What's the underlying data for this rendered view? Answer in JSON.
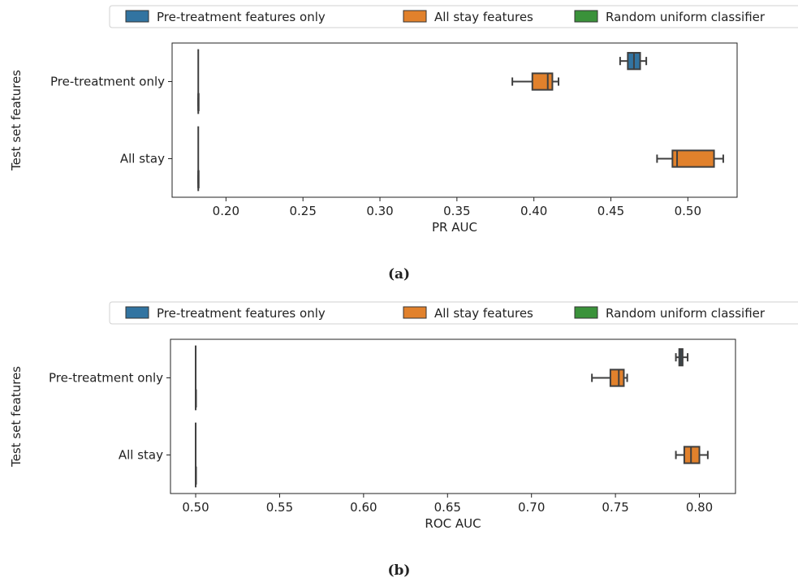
{
  "panels": [
    {
      "caption": "(a)",
      "chart_data": {
        "type": "boxplot",
        "orientation": "horizontal",
        "legend": [
          "Pre-treatment features only",
          "All stay features",
          "Random uniform classifier"
        ],
        "legend_position": "top",
        "series_colors": [
          "#3274a1",
          "#e1812c",
          "#3a923a"
        ],
        "xlabel": "PR AUC",
        "ylabel": "Test set features",
        "xlim": [
          0.165,
          0.532
        ],
        "xticks": [
          0.2,
          0.25,
          0.3,
          0.35,
          0.4,
          0.45,
          0.5
        ],
        "xtick_labels": [
          "0.20",
          "0.25",
          "0.30",
          "0.35",
          "0.40",
          "0.45",
          "0.50"
        ],
        "categories": [
          "Pre-treatment only",
          "All stay"
        ],
        "series": [
          {
            "name": "Pre-treatment features only",
            "boxes": [
              {
                "min": 0.456,
                "q1": 0.461,
                "median": 0.465,
                "q3": 0.469,
                "max": 0.473
              },
              null
            ]
          },
          {
            "name": "All stay features",
            "boxes": [
              {
                "min": 0.386,
                "q1": 0.399,
                "median": 0.409,
                "q3": 0.412,
                "max": 0.416
              },
              {
                "min": 0.48,
                "q1": 0.49,
                "median": 0.493,
                "q3": 0.517,
                "max": 0.523
              }
            ]
          },
          {
            "name": "Random uniform classifier",
            "boxes": [
              {
                "min": 0.182,
                "q1": 0.182,
                "median": 0.182,
                "q3": 0.182,
                "max": 0.182
              },
              {
                "min": 0.182,
                "q1": 0.182,
                "median": 0.182,
                "q3": 0.182,
                "max": 0.182
              }
            ]
          }
        ]
      }
    },
    {
      "caption": "(b)",
      "chart_data": {
        "type": "boxplot",
        "orientation": "horizontal",
        "legend": [
          "Pre-treatment features only",
          "All stay features",
          "Random uniform classifier"
        ],
        "legend_position": "top",
        "series_colors": [
          "#3274a1",
          "#e1812c",
          "#3a923a"
        ],
        "xlabel": "ROC AUC",
        "ylabel": "Test set features",
        "xlim": [
          0.485,
          0.8215
        ],
        "xticks": [
          0.5,
          0.55,
          0.6,
          0.65,
          0.7,
          0.75,
          0.8
        ],
        "xtick_labels": [
          "0.50",
          "0.55",
          "0.60",
          "0.65",
          "0.70",
          "0.75",
          "0.80"
        ],
        "categories": [
          "Pre-treatment only",
          "All stay"
        ],
        "series": [
          {
            "name": "Pre-treatment features only",
            "boxes": [
              {
                "min": 0.786,
                "q1": 0.788,
                "median": 0.789,
                "q3": 0.79,
                "max": 0.793
              },
              null
            ]
          },
          {
            "name": "All stay features",
            "boxes": [
              {
                "min": 0.736,
                "q1": 0.747,
                "median": 0.752,
                "q3": 0.755,
                "max": 0.757
              },
              {
                "min": 0.786,
                "q1": 0.791,
                "median": 0.795,
                "q3": 0.8,
                "max": 0.805
              }
            ]
          },
          {
            "name": "Random uniform classifier",
            "boxes": [
              {
                "min": 0.5,
                "q1": 0.5,
                "median": 0.5,
                "q3": 0.5,
                "max": 0.5
              },
              {
                "min": 0.5,
                "q1": 0.5,
                "median": 0.5,
                "q3": 0.5,
                "max": 0.5
              }
            ]
          }
        ]
      }
    }
  ]
}
